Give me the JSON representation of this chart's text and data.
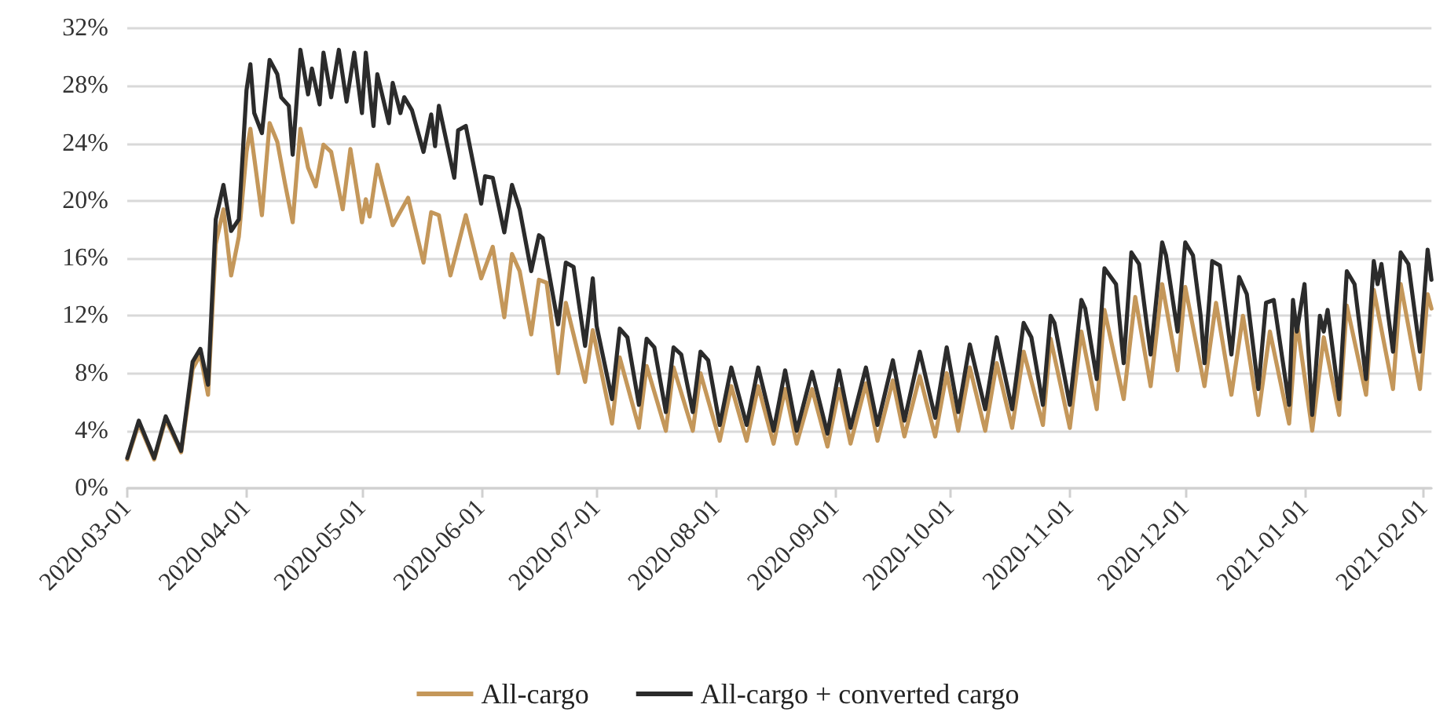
{
  "chart_data": {
    "type": "line",
    "legend": "bottom",
    "grid": "y",
    "line_style": "solid",
    "marker": "none",
    "xlim": [
      "2020-03-01",
      "2021-02-03"
    ],
    "xticks": [
      "2020-03-01",
      "2020-04-01",
      "2020-05-01",
      "2020-06-01",
      "2020-07-01",
      "2020-08-01",
      "2020-09-01",
      "2020-10-01",
      "2020-11-01",
      "2020-12-01",
      "2021-01-01",
      "2021-02-01"
    ],
    "ylim": [
      0,
      32
    ],
    "yticks": [
      {
        "value": 0,
        "label": "0%"
      },
      {
        "value": 4,
        "label": "4%"
      },
      {
        "value": 8,
        "label": "8%"
      },
      {
        "value": 12,
        "label": "12%"
      },
      {
        "value": 16,
        "label": "16%"
      },
      {
        "value": 20,
        "label": "20%"
      },
      {
        "value": 24,
        "label": "24%"
      },
      {
        "value": 28,
        "label": "28%"
      },
      {
        "value": 32,
        "label": "32%"
      }
    ],
    "series": [
      {
        "name": "All-cargo",
        "color": "#c4975a",
        "x": [
          "2020-03-01",
          "2020-03-04",
          "2020-03-08",
          "2020-03-11",
          "2020-03-15",
          "2020-03-18",
          "2020-03-20",
          "2020-03-22",
          "2020-03-24",
          "2020-03-26",
          "2020-03-28",
          "2020-03-30",
          "2020-04-01",
          "2020-04-02",
          "2020-04-05",
          "2020-04-07",
          "2020-04-09",
          "2020-04-11",
          "2020-04-13",
          "2020-04-15",
          "2020-04-17",
          "2020-04-19",
          "2020-04-21",
          "2020-04-23",
          "2020-04-26",
          "2020-04-28",
          "2020-05-01",
          "2020-05-02",
          "2020-05-03",
          "2020-05-05",
          "2020-05-09",
          "2020-05-13",
          "2020-05-17",
          "2020-05-19",
          "2020-05-21",
          "2020-05-24",
          "2020-05-28",
          "2020-06-01",
          "2020-06-04",
          "2020-06-07",
          "2020-06-09",
          "2020-06-11",
          "2020-06-14",
          "2020-06-16",
          "2020-06-18",
          "2020-06-21",
          "2020-06-23",
          "2020-06-28",
          "2020-06-30",
          "2020-07-05",
          "2020-07-07",
          "2020-07-12",
          "2020-07-14",
          "2020-07-19",
          "2020-07-21",
          "2020-07-26",
          "2020-07-28",
          "2020-08-02",
          "2020-08-05",
          "2020-08-09",
          "2020-08-12",
          "2020-08-16",
          "2020-08-19",
          "2020-08-22",
          "2020-08-26",
          "2020-08-30",
          "2020-09-02",
          "2020-09-05",
          "2020-09-09",
          "2020-09-12",
          "2020-09-16",
          "2020-09-19",
          "2020-09-23",
          "2020-09-27",
          "2020-09-30",
          "2020-10-03",
          "2020-10-06",
          "2020-10-10",
          "2020-10-13",
          "2020-10-17",
          "2020-10-20",
          "2020-10-25",
          "2020-10-27",
          "2020-11-01",
          "2020-11-04",
          "2020-11-08",
          "2020-11-10",
          "2020-11-15",
          "2020-11-18",
          "2020-11-22",
          "2020-11-25",
          "2020-11-29",
          "2020-12-01",
          "2020-12-06",
          "2020-12-09",
          "2020-12-13",
          "2020-12-16",
          "2020-12-20",
          "2020-12-23",
          "2020-12-28",
          "2020-12-30",
          "2021-01-03",
          "2021-01-06",
          "2021-01-10",
          "2021-01-12",
          "2021-01-17",
          "2021-01-19",
          "2021-01-24",
          "2021-01-26",
          "2021-01-31",
          "2021-02-02",
          "2021-02-03"
        ],
        "values": [
          2.0,
          4.5,
          2.0,
          4.8,
          2.5,
          8.3,
          9.3,
          6.5,
          17,
          19.4,
          14.8,
          17.5,
          23.4,
          25,
          19,
          25.4,
          24.1,
          21.2,
          18.5,
          25,
          22.3,
          21,
          23.9,
          23.4,
          19.4,
          23.6,
          18.5,
          20.1,
          18.9,
          22.5,
          18.3,
          20.2,
          15.7,
          19.2,
          19,
          14.8,
          19,
          14.6,
          16.8,
          11.9,
          16.3,
          15.1,
          10.7,
          14.5,
          14.3,
          8,
          12.9,
          7.4,
          11,
          4.5,
          9.1,
          4.2,
          8.5,
          4,
          8.4,
          4,
          8,
          3.3,
          7.1,
          3.3,
          7.1,
          3.1,
          6.9,
          3.1,
          6.9,
          2.9,
          6.9,
          3.1,
          7.3,
          3.3,
          7.5,
          3.6,
          7.8,
          3.6,
          8,
          4,
          8.4,
          4,
          8.7,
          4.2,
          9.5,
          4.4,
          10.4,
          4.2,
          10.9,
          5.5,
          12.4,
          6.2,
          13.3,
          7.1,
          14.2,
          8.2,
          14,
          7.1,
          12.9,
          6.5,
          12,
          5.1,
          10.9,
          4.5,
          11.6,
          4,
          10.5,
          5.1,
          12.7,
          6.5,
          13.8,
          6.9,
          14.2,
          6.9,
          13.5,
          12.5
        ]
      },
      {
        "name": "All-cargo + converted cargo",
        "color": "#2b2b2b",
        "x": [
          "2020-03-01",
          "2020-03-04",
          "2020-03-08",
          "2020-03-11",
          "2020-03-15",
          "2020-03-18",
          "2020-03-20",
          "2020-03-22",
          "2020-03-24",
          "2020-03-26",
          "2020-03-28",
          "2020-03-30",
          "2020-04-01",
          "2020-04-02",
          "2020-04-03",
          "2020-04-05",
          "2020-04-07",
          "2020-04-09",
          "2020-04-10",
          "2020-04-12",
          "2020-04-13",
          "2020-04-15",
          "2020-04-17",
          "2020-04-18",
          "2020-04-20",
          "2020-04-21",
          "2020-04-23",
          "2020-04-25",
          "2020-04-27",
          "2020-04-29",
          "2020-05-01",
          "2020-05-02",
          "2020-05-04",
          "2020-05-05",
          "2020-05-08",
          "2020-05-09",
          "2020-05-11",
          "2020-05-12",
          "2020-05-14",
          "2020-05-17",
          "2020-05-19",
          "2020-05-20",
          "2020-05-21",
          "2020-05-25",
          "2020-05-26",
          "2020-05-28",
          "2020-06-01",
          "2020-06-02",
          "2020-06-04",
          "2020-06-07",
          "2020-06-09",
          "2020-06-11",
          "2020-06-14",
          "2020-06-16",
          "2020-06-17",
          "2020-06-21",
          "2020-06-23",
          "2020-06-25",
          "2020-06-28",
          "2020-06-30",
          "2020-07-01",
          "2020-07-05",
          "2020-07-07",
          "2020-07-09",
          "2020-07-12",
          "2020-07-14",
          "2020-07-16",
          "2020-07-19",
          "2020-07-21",
          "2020-07-23",
          "2020-07-26",
          "2020-07-28",
          "2020-07-30",
          "2020-08-02",
          "2020-08-05",
          "2020-08-09",
          "2020-08-12",
          "2020-08-16",
          "2020-08-19",
          "2020-08-22",
          "2020-08-26",
          "2020-08-30",
          "2020-09-02",
          "2020-09-05",
          "2020-09-09",
          "2020-09-12",
          "2020-09-16",
          "2020-09-19",
          "2020-09-23",
          "2020-09-27",
          "2020-09-30",
          "2020-10-03",
          "2020-10-06",
          "2020-10-10",
          "2020-10-13",
          "2020-10-17",
          "2020-10-20",
          "2020-10-22",
          "2020-10-25",
          "2020-10-27",
          "2020-10-28",
          "2020-11-01",
          "2020-11-04",
          "2020-11-05",
          "2020-11-08",
          "2020-11-10",
          "2020-11-13",
          "2020-11-15",
          "2020-11-17",
          "2020-11-19",
          "2020-11-22",
          "2020-11-25",
          "2020-11-26",
          "2020-11-29",
          "2020-12-01",
          "2020-12-03",
          "2020-12-05",
          "2020-12-06",
          "2020-12-08",
          "2020-12-10",
          "2020-12-13",
          "2020-12-15",
          "2020-12-17",
          "2020-12-20",
          "2020-12-22",
          "2020-12-24",
          "2020-12-28",
          "2020-12-29",
          "2020-12-30",
          "2021-01-01",
          "2021-01-03",
          "2021-01-05",
          "2021-01-06",
          "2021-01-07",
          "2021-01-10",
          "2021-01-12",
          "2021-01-14",
          "2021-01-17",
          "2021-01-19",
          "2021-01-20",
          "2021-01-21",
          "2021-01-24",
          "2021-01-26",
          "2021-01-28",
          "2021-01-31",
          "2021-02-02",
          "2021-02-03"
        ],
        "values": [
          2.1,
          4.7,
          2.1,
          5,
          2.6,
          8.8,
          9.7,
          7.2,
          18.7,
          21.1,
          17.9,
          18.7,
          27.7,
          29.5,
          26.1,
          24.7,
          29.8,
          28.8,
          27.2,
          26.6,
          23.2,
          30.5,
          27.4,
          29.2,
          26.7,
          30.3,
          27.2,
          30.5,
          26.9,
          30.3,
          26.1,
          30.3,
          25.2,
          28.8,
          25.4,
          28.2,
          26.1,
          27.2,
          26.3,
          23.4,
          26,
          23.8,
          26.6,
          21.6,
          24.9,
          25.2,
          19.8,
          21.7,
          21.6,
          17.8,
          21.1,
          19.4,
          15.1,
          17.6,
          17.4,
          11.4,
          15.7,
          15.4,
          9.9,
          14.6,
          11.3,
          6.2,
          11.1,
          10.5,
          5.8,
          10.4,
          9.8,
          5.3,
          9.8,
          9.3,
          5.3,
          9.5,
          8.9,
          4.4,
          8.4,
          4.4,
          8.4,
          4,
          8.2,
          4,
          8.1,
          3.8,
          8.2,
          4.2,
          8.4,
          4.4,
          8.9,
          4.7,
          9.5,
          4.9,
          9.8,
          5.3,
          10,
          5.5,
          10.5,
          5.5,
          11.5,
          10.5,
          5.8,
          12,
          11.5,
          5.8,
          13.1,
          12.5,
          7.6,
          15.3,
          14.2,
          8.7,
          16.4,
          15.6,
          9.3,
          17.1,
          16.2,
          10.9,
          17.1,
          16.2,
          12,
          8.7,
          15.8,
          15.5,
          9.3,
          14.7,
          13.5,
          6.9,
          12.9,
          13.1,
          5.8,
          13.1,
          10.9,
          14.2,
          5.1,
          12,
          10.9,
          12.4,
          6.2,
          15.1,
          14.2,
          7.6,
          15.8,
          14.2,
          15.6,
          9.5,
          16.4,
          15.6,
          9.5,
          16.6,
          14.5
        ]
      }
    ]
  }
}
